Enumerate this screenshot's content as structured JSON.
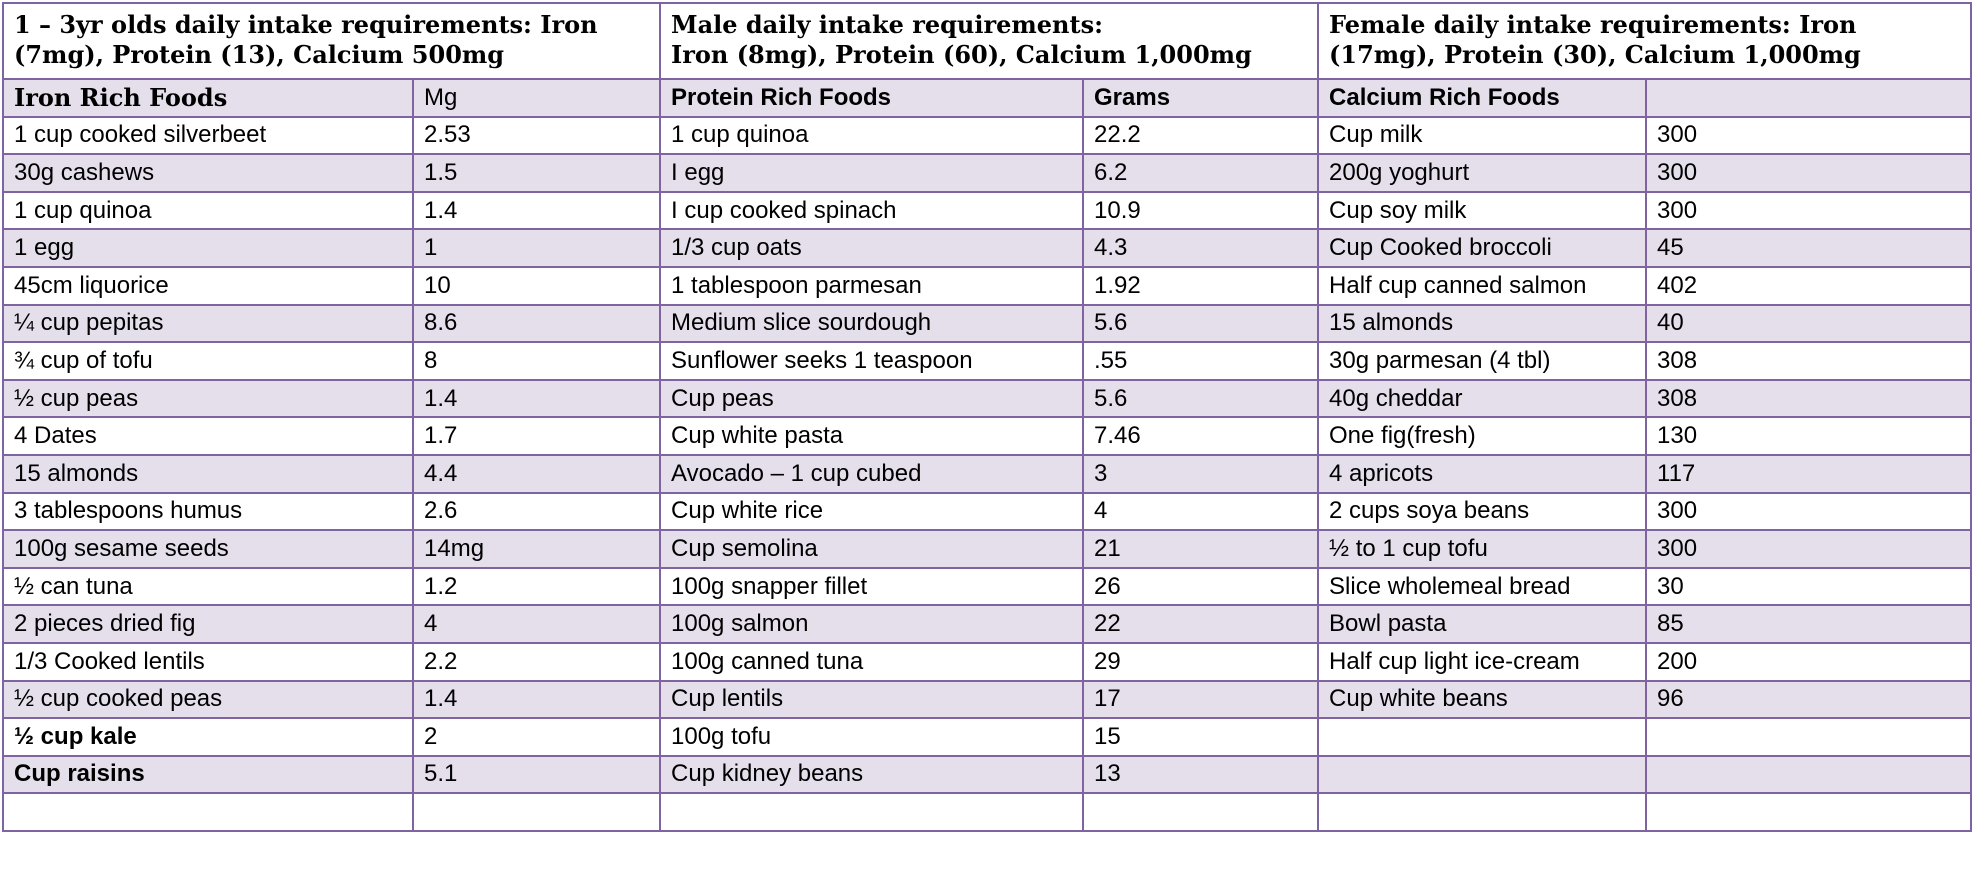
{
  "headers": [
    "1 – 3yr olds daily intake requirements:  Iron (7mg), Protein (13), Calcium 500mg",
    "Male daily intake requirements:\n Iron (8mg), Protein (60), Calcium 1,000mg",
    "Female daily intake requirements:  Iron (17mg), Protein (30), Calcium 1,000mg"
  ],
  "columns": [
    "Iron Rich Foods",
    "Mg",
    "Protein Rich Foods",
    "Grams",
    "Calcium Rich Foods",
    ""
  ],
  "rows": [
    [
      "1 cup cooked silverbeet",
      "2.53",
      "1 cup quinoa",
      "22.2",
      "Cup milk",
      "300"
    ],
    [
      "30g cashews",
      "1.5",
      "I egg",
      "6.2",
      "200g yoghurt",
      "300"
    ],
    [
      "1 cup quinoa",
      "1.4",
      "I cup cooked spinach",
      "10.9",
      "Cup soy milk",
      "300"
    ],
    [
      "1 egg",
      "1",
      "1/3 cup oats",
      "4.3",
      "Cup Cooked broccoli",
      "45"
    ],
    [
      "45cm liquorice",
      "10",
      "1 tablespoon parmesan",
      "1.92",
      "Half cup canned salmon",
      "402"
    ],
    [
      "¼ cup pepitas",
      "8.6",
      "Medium slice sourdough",
      "5.6",
      "15 almonds",
      "40"
    ],
    [
      "¾ cup of tofu",
      "8",
      "Sunflower seeks 1 teaspoon",
      ".55",
      "30g parmesan (4 tbl)",
      "308"
    ],
    [
      "½ cup peas",
      "1.4",
      "Cup peas",
      "5.6",
      "40g cheddar",
      "308"
    ],
    [
      "4 Dates",
      "1.7",
      "Cup white pasta",
      "7.46",
      "One fig(fresh)",
      "130"
    ],
    [
      "15 almonds",
      "4.4",
      "Avocado – 1 cup cubed",
      "3",
      "4 apricots",
      "117"
    ],
    [
      "3 tablespoons humus",
      "2.6",
      "Cup white rice",
      "4",
      "2 cups soya beans",
      "300"
    ],
    [
      "100g sesame seeds",
      "14mg",
      "Cup semolina",
      "21",
      "½ to 1 cup tofu",
      "300"
    ],
    [
      "½ can tuna",
      "1.2",
      "100g snapper fillet",
      "26",
      "Slice wholemeal bread",
      "30"
    ],
    [
      "2 pieces dried fig",
      "4",
      "100g salmon",
      "22",
      "Bowl pasta",
      "85"
    ],
    [
      "1/3 Cooked lentils",
      "2.2",
      "100g canned tuna",
      "29",
      "Half cup light ice-cream",
      "200"
    ],
    [
      "½ cup cooked peas",
      "1.4",
      "Cup lentils",
      "17",
      "Cup white beans",
      "96"
    ],
    [
      "½ cup kale",
      "2",
      "100g tofu",
      "15",
      "",
      ""
    ],
    [
      "Cup raisins",
      "5.1",
      "Cup kidney beans",
      "13",
      "",
      ""
    ],
    [
      "",
      "",
      "",
      "",
      "",
      ""
    ]
  ],
  "bold_first_cell_rows": [
    16,
    17
  ],
  "colors": {
    "border": "#8064a2",
    "band": "#e5dfec",
    "text": "#000000"
  }
}
